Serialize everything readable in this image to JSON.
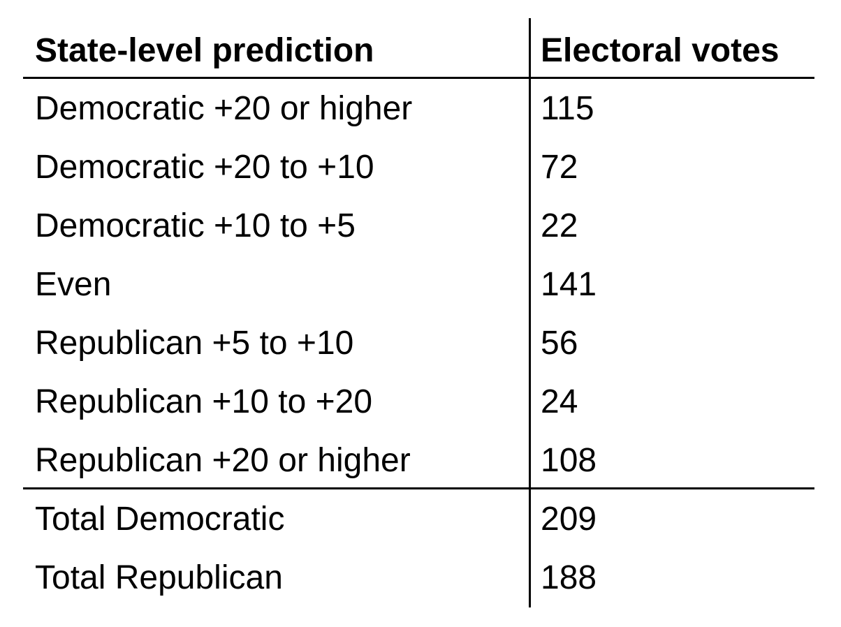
{
  "chart_data": {
    "type": "table",
    "columns": [
      "State-level prediction",
      "Electoral votes"
    ],
    "rows": [
      {
        "label": "Democratic +20 or higher",
        "value": "115"
      },
      {
        "label": "Democratic +20 to +10",
        "value": "72"
      },
      {
        "label": "Democratic +10 to +5",
        "value": "22"
      },
      {
        "label": "Even",
        "value": "141"
      },
      {
        "label": "Republican +5 to +10",
        "value": "56"
      },
      {
        "label": "Republican +10 to +20",
        "value": "24"
      },
      {
        "label": "Republican +20 or higher",
        "value": "108"
      }
    ],
    "totals": [
      {
        "label": "Total Democratic",
        "value": "209"
      },
      {
        "label": "Total Republican",
        "value": "188"
      }
    ]
  }
}
